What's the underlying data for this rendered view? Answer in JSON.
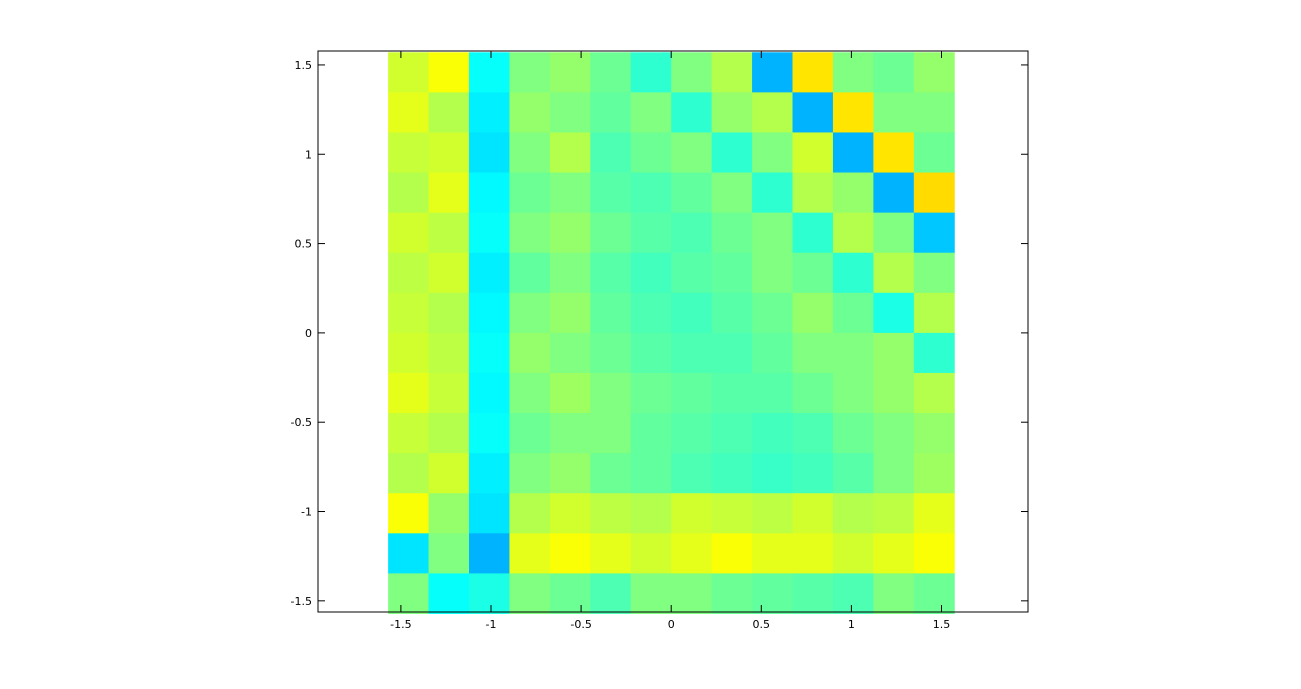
{
  "chart_data": {
    "type": "heatmap",
    "colormap": "jet",
    "clim": [
      0,
      1
    ],
    "image_xlim": [
      -1.5708,
      1.5708
    ],
    "image_ylim": [
      -1.5708,
      1.5708
    ],
    "xlim": [
      -1.96,
      1.98
    ],
    "ylim": [
      -1.5625,
      1.578
    ],
    "xticks": [
      -1.5,
      -1,
      -0.5,
      0,
      0.5,
      1,
      1.5
    ],
    "yticks": [
      -1.5,
      -1,
      -0.5,
      0,
      0.5,
      1,
      1.5
    ],
    "z": [
      [
        0.58,
        0.62,
        0.38,
        0.5,
        0.52,
        0.48,
        0.42,
        0.5,
        0.55,
        0.3,
        0.65,
        0.5,
        0.48,
        0.52
      ],
      [
        0.6,
        0.55,
        0.36,
        0.52,
        0.5,
        0.47,
        0.5,
        0.42,
        0.52,
        0.55,
        0.3,
        0.65,
        0.5,
        0.5
      ],
      [
        0.57,
        0.58,
        0.35,
        0.5,
        0.55,
        0.45,
        0.48,
        0.5,
        0.42,
        0.5,
        0.58,
        0.3,
        0.65,
        0.48
      ],
      [
        0.55,
        0.6,
        0.37,
        0.48,
        0.5,
        0.46,
        0.45,
        0.47,
        0.5,
        0.42,
        0.55,
        0.52,
        0.3,
        0.66
      ],
      [
        0.58,
        0.56,
        0.38,
        0.5,
        0.52,
        0.48,
        0.46,
        0.45,
        0.48,
        0.5,
        0.42,
        0.55,
        0.5,
        0.32
      ],
      [
        0.56,
        0.58,
        0.36,
        0.47,
        0.5,
        0.46,
        0.44,
        0.46,
        0.47,
        0.5,
        0.48,
        0.42,
        0.55,
        0.5
      ],
      [
        0.57,
        0.55,
        0.37,
        0.5,
        0.52,
        0.47,
        0.45,
        0.44,
        0.46,
        0.48,
        0.52,
        0.48,
        0.4,
        0.55
      ],
      [
        0.58,
        0.56,
        0.38,
        0.52,
        0.5,
        0.48,
        0.46,
        0.45,
        0.45,
        0.47,
        0.5,
        0.5,
        0.52,
        0.42
      ],
      [
        0.6,
        0.57,
        0.37,
        0.5,
        0.53,
        0.5,
        0.48,
        0.47,
        0.46,
        0.46,
        0.48,
        0.5,
        0.52,
        0.55
      ],
      [
        0.57,
        0.55,
        0.38,
        0.48,
        0.5,
        0.5,
        0.47,
        0.46,
        0.45,
        0.44,
        0.45,
        0.48,
        0.5,
        0.52
      ],
      [
        0.55,
        0.58,
        0.36,
        0.5,
        0.52,
        0.48,
        0.47,
        0.45,
        0.44,
        0.43,
        0.44,
        0.46,
        0.5,
        0.53
      ],
      [
        0.62,
        0.52,
        0.35,
        0.55,
        0.58,
        0.56,
        0.55,
        0.58,
        0.57,
        0.56,
        0.58,
        0.55,
        0.56,
        0.6
      ],
      [
        0.35,
        0.5,
        0.3,
        0.6,
        0.62,
        0.6,
        0.58,
        0.6,
        0.62,
        0.6,
        0.6,
        0.58,
        0.6,
        0.62
      ],
      [
        0.5,
        0.38,
        0.4,
        0.5,
        0.48,
        0.45,
        0.5,
        0.5,
        0.48,
        0.47,
        0.46,
        0.45,
        0.5,
        0.48
      ]
    ]
  }
}
